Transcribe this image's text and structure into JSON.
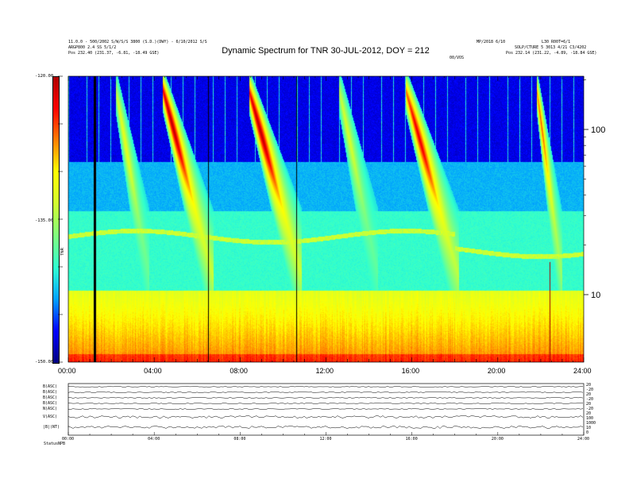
{
  "header": {
    "left_line1": "11.0.0 - 500/2002 S/W/S/S  3800 (S.D.)(DWY) - 6/10/2012 S/S",
    "left_line2": "ARGP800 2.4 SS 5/1/2",
    "left_line3": "Pos 232.40 (231.37, -6.81, -18.49 GSE)",
    "right_line1": "MP/2018 6/10",
    "right_line2": "SOLP/CTURE 5 3013 4/21 C3/4202",
    "right_line3": "Pos 232.14 (231.22, -4.89, -18.84 GSE)",
    "right_corner": "L30 R00T=6/1",
    "mid_small": "00/VOS"
  },
  "chart_data": {
    "type": "heatmap",
    "title": "Dynamic Spectrum for TNR 30-JUL-2012, DOY = 212",
    "x_tick_labels": [
      "00:00",
      "04:00",
      "08:00",
      "12:00",
      "16:00",
      "20:00",
      "24:00"
    ],
    "x_range_hours": [
      0,
      24
    ],
    "y_right_tick_labels": [
      "100",
      "10"
    ],
    "y_right_scale": "log",
    "colorbar": {
      "tick_labels": [
        "-120.00",
        "-135.00",
        "-150.00"
      ],
      "range": [
        -150,
        -120
      ],
      "label": "TNR",
      "colormap": [
        "#00007f",
        "#0000ff",
        "#00a0ff",
        "#2fffd0",
        "#7fff7f",
        "#d0ff2f",
        "#ffff00",
        "#ff8000",
        "#ff0000",
        "#b00000"
      ]
    },
    "bursts": [
      {
        "start_h": 4.4,
        "peak_h": 4.8,
        "end_h": 6.2,
        "intensity": 1.0
      },
      {
        "start_h": 8.4,
        "peak_h": 8.9,
        "end_h": 10.3,
        "intensity": 1.0
      },
      {
        "start_h": 15.7,
        "peak_h": 16.3,
        "end_h": 17.6,
        "intensity": 0.9
      },
      {
        "start_h": 2.2,
        "peak_h": 2.6,
        "end_h": 3.4,
        "intensity": 0.45
      },
      {
        "start_h": 12.6,
        "peak_h": 13.0,
        "end_h": 14.0,
        "intensity": 0.4
      },
      {
        "start_h": 21.8,
        "peak_h": 22.0,
        "end_h": 22.7,
        "intensity": 0.75
      }
    ],
    "vertical_lines_h": [
      1.2,
      6.5,
      10.6
    ],
    "red_line_h": 22.4
  },
  "lower_panel": {
    "row_labels": [
      "B(ASC)",
      "B(ASC)",
      "B(ASC)",
      "B(ASC)",
      "N(ASC)",
      "V(ASC)",
      "|B|(NT)"
    ],
    "right_labels": [
      "20",
      "-20",
      "20",
      "-20",
      "20",
      "-20",
      "20",
      "100",
      "1000",
      "10",
      "0"
    ],
    "bottom_left_label": "Status",
    "bottom_left_value": "NPB",
    "x_tick_labels": [
      "00:00",
      "04:00",
      "08:00",
      "12:00",
      "16:00",
      "20:00",
      "24:00"
    ]
  }
}
